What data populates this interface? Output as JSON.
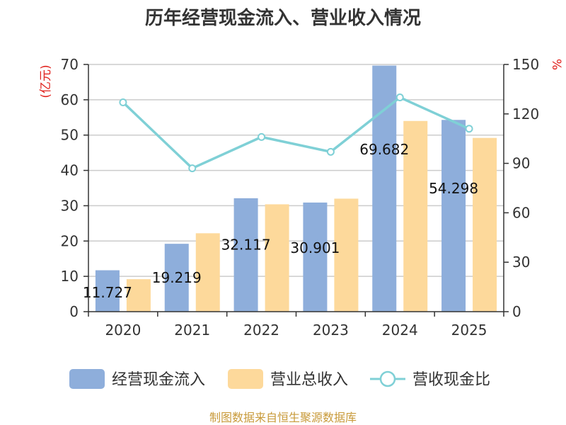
{
  "chart_data": {
    "type": "bar",
    "title": "历年经营现金流入、营业收入情况",
    "categories": [
      "2020",
      "2021",
      "2022",
      "2023",
      "2024",
      "2025"
    ],
    "left_unit": "(亿元)",
    "right_unit": "%",
    "ylim_left": [
      0,
      70
    ],
    "ylim_right": [
      0,
      150
    ],
    "yticks_left": [
      "0",
      "10",
      "20",
      "30",
      "40",
      "50",
      "60",
      "70"
    ],
    "yticks_right": [
      "0",
      "30",
      "60",
      "90",
      "120",
      "150"
    ],
    "series": [
      {
        "name": "经营现金流入",
        "type": "bar",
        "axis": "left",
        "color": "#8eaedb",
        "values": [
          11.727,
          19.219,
          32.117,
          30.901,
          69.682,
          54.298
        ],
        "labels": [
          "11.727",
          "19.219",
          "32.117",
          "30.901",
          "69.682",
          "54.298"
        ]
      },
      {
        "name": "营业总收入",
        "type": "bar",
        "axis": "left",
        "color": "#fdd99b",
        "values": [
          9.2,
          22.2,
          30.4,
          32.0,
          54.0,
          49.2
        ]
      },
      {
        "name": "营收现金比",
        "type": "line",
        "axis": "right",
        "color": "#7fd0d6",
        "values": [
          127,
          87,
          106,
          97,
          130,
          111
        ]
      }
    ],
    "grid": true,
    "legend": "bottom"
  },
  "footer": {
    "source": "制图数据来自恒生聚源数据库"
  }
}
